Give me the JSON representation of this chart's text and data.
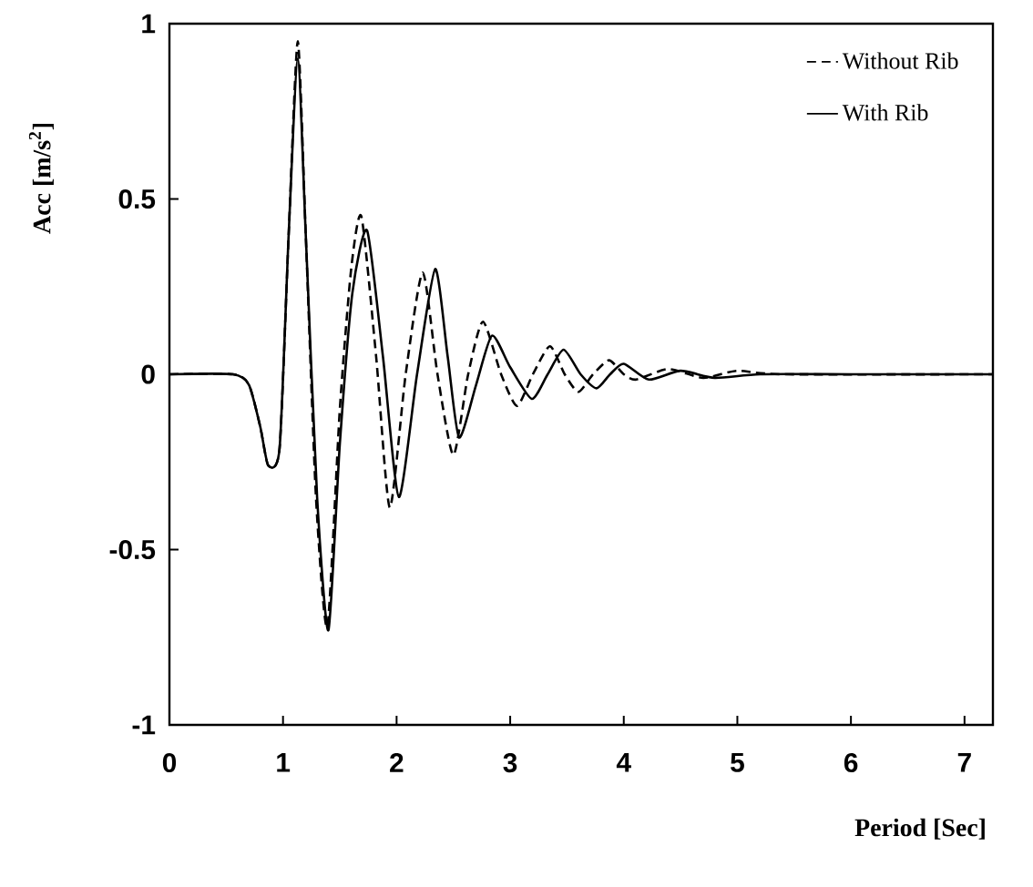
{
  "chart_data": {
    "type": "line",
    "xlabel": "Period [Sec]",
    "ylabel": "Acc [m/s$^{2}$]",
    "xlim": [
      0,
      7.25
    ],
    "ylim": [
      -1,
      1
    ],
    "xticks": [
      0,
      1,
      2,
      3,
      4,
      5,
      6,
      7
    ],
    "yticks": [
      -1,
      -0.5,
      0,
      0.5,
      1
    ],
    "legend": "top right",
    "grid": false,
    "marker": "none",
    "series": [
      {
        "name": "Without Rib",
        "color": "#000000",
        "line_style": "dashed",
        "x": [
          0,
          0.56,
          0.7,
          0.8,
          0.87,
          0.97,
          1.05,
          1.13,
          1.2,
          1.29,
          1.39,
          1.5,
          1.6,
          1.69,
          1.82,
          1.94,
          2.08,
          2.23,
          2.36,
          2.5,
          2.63,
          2.76,
          2.92,
          3.06,
          3.2,
          3.35,
          3.48,
          3.6,
          3.73,
          3.87,
          4.0,
          4.11,
          4.39,
          4.7,
          5.0,
          5.4,
          7.25
        ],
        "values": [
          0,
          0,
          -0.03,
          -0.15,
          -0.26,
          -0.21,
          0.4,
          0.95,
          0.4,
          -0.35,
          -0.72,
          -0.1,
          0.3,
          0.45,
          0.05,
          -0.38,
          0,
          0.29,
          0,
          -0.23,
          0,
          0.15,
          0,
          -0.09,
          0,
          0.08,
          0,
          -0.05,
          0,
          0.04,
          0,
          -0.015,
          0.015,
          -0.01,
          0.01,
          0,
          0
        ]
      },
      {
        "name": "With Rib",
        "color": "#000000",
        "line_style": "solid",
        "x": [
          0,
          0.56,
          0.7,
          0.8,
          0.87,
          0.97,
          1.05,
          1.13,
          1.2,
          1.3,
          1.4,
          1.5,
          1.61,
          1.74,
          1.88,
          2.02,
          2.18,
          2.34,
          2.45,
          2.55,
          2.7,
          2.84,
          3.0,
          3.19,
          3.33,
          3.47,
          3.62,
          3.76,
          3.88,
          4.0,
          4.22,
          4.5,
          4.8,
          5.2,
          6,
          7,
          7.25
        ],
        "values": [
          0,
          0,
          -0.03,
          -0.15,
          -0.26,
          -0.21,
          0.4,
          0.9,
          0.4,
          -0.35,
          -0.73,
          -0.2,
          0.23,
          0.41,
          0.05,
          -0.35,
          0,
          0.3,
          0.05,
          -0.18,
          -0.03,
          0.11,
          0.02,
          -0.07,
          0,
          0.07,
          0,
          -0.04,
          0,
          0.03,
          -0.015,
          0.01,
          -0.01,
          0,
          0,
          0,
          0
        ]
      }
    ]
  }
}
